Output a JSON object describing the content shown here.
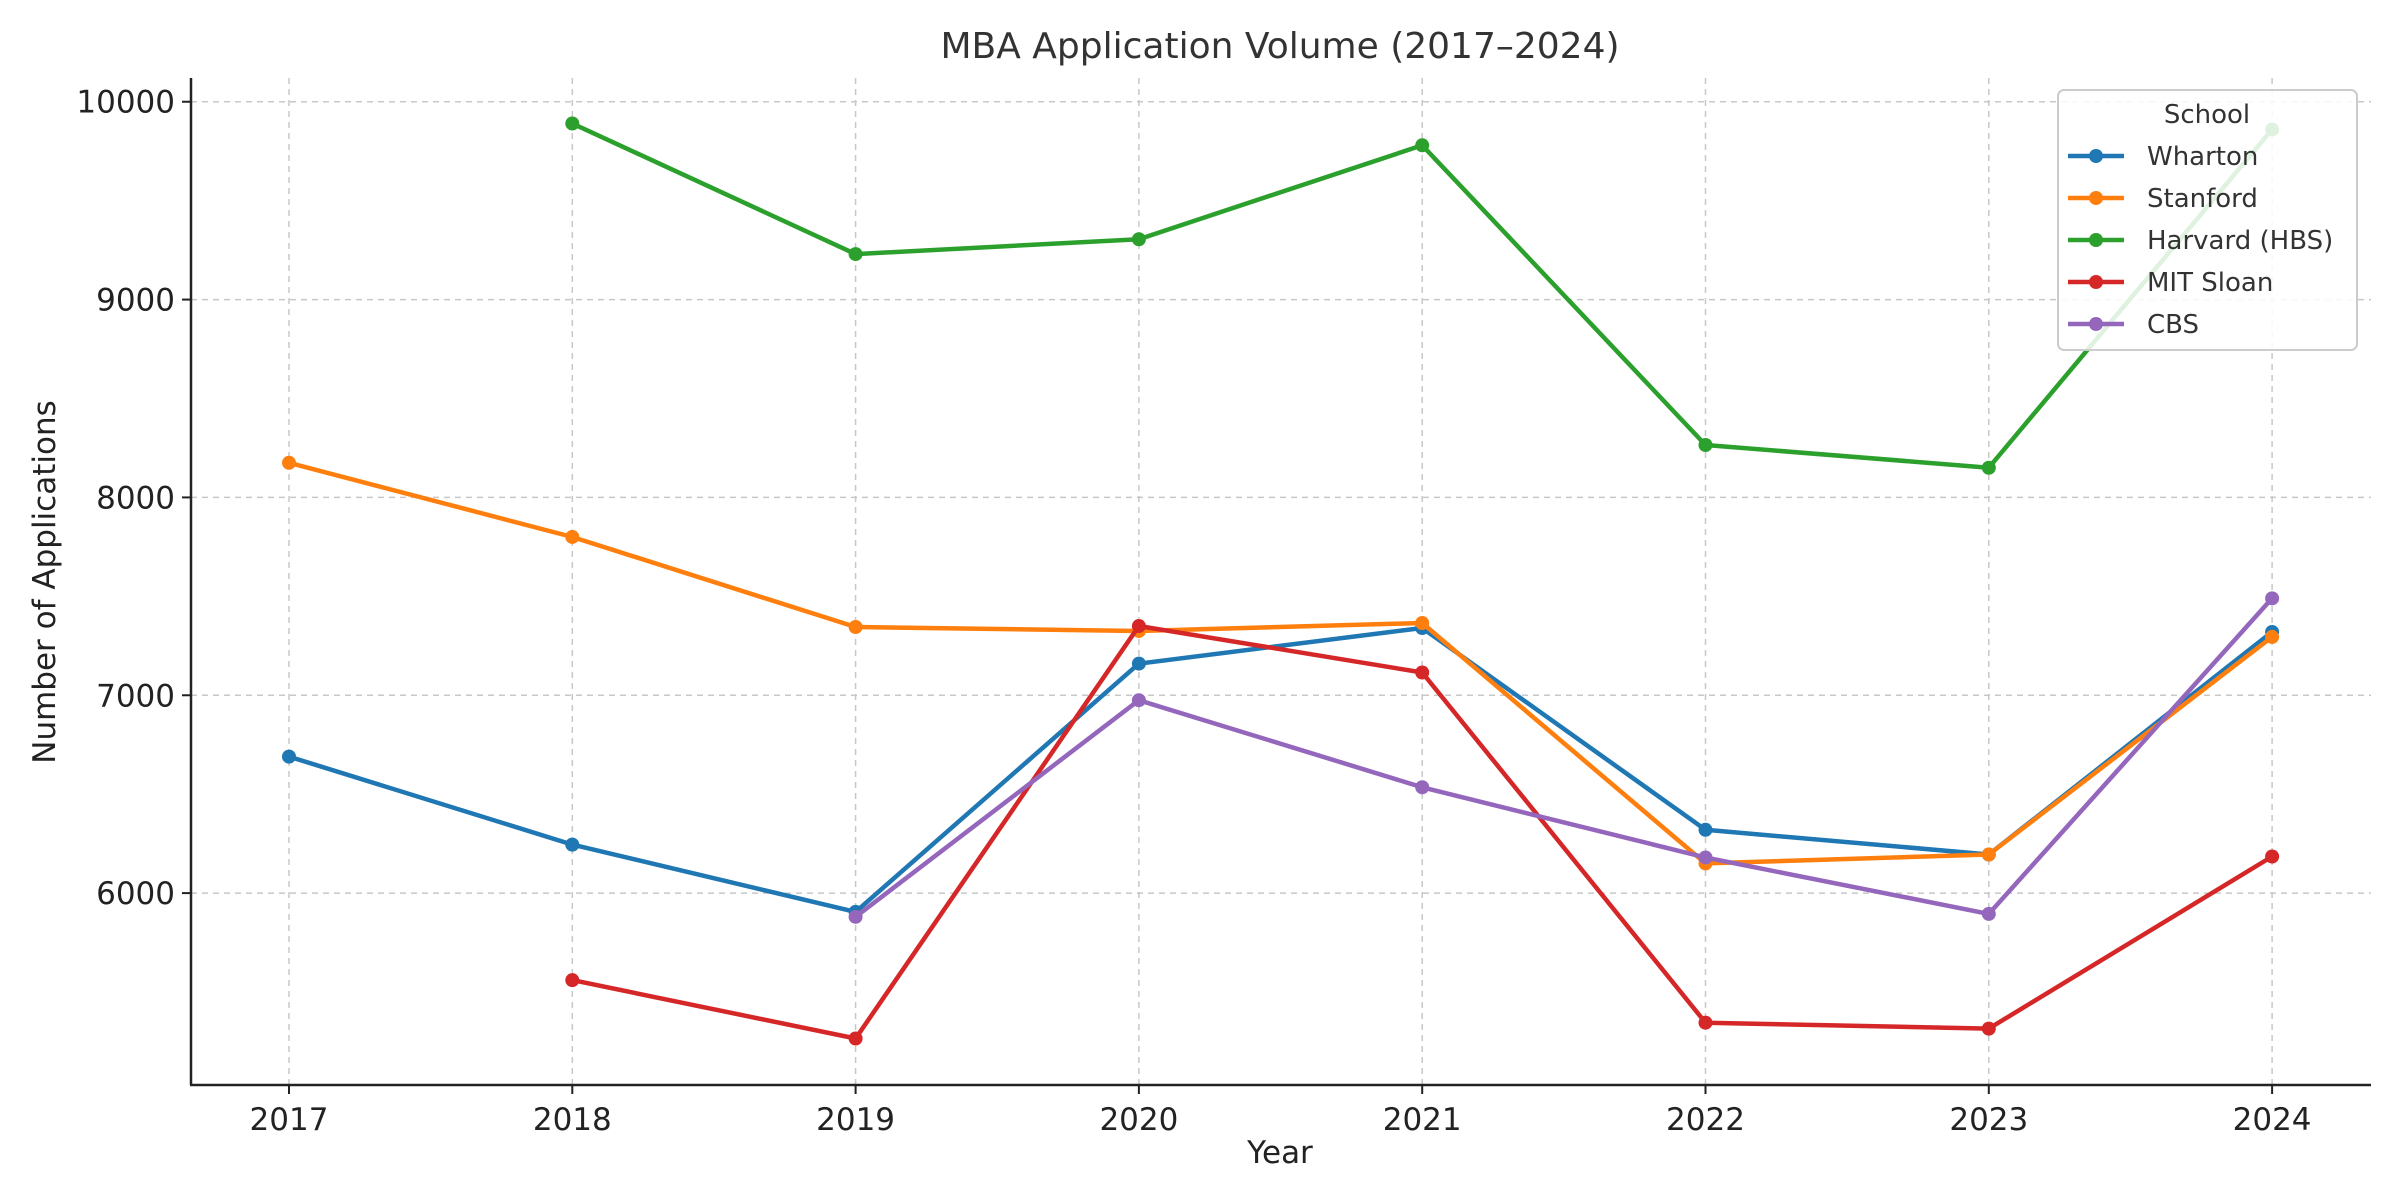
{
  "chart_data": {
    "type": "line",
    "title": "MBA Application Volume (2017–2024)",
    "xlabel": "Year",
    "ylabel": "Number of Applications",
    "categories": [
      "2017",
      "2018",
      "2019",
      "2020",
      "2021",
      "2022",
      "2023",
      "2024"
    ],
    "yticks": [
      6000,
      7000,
      8000,
      9000,
      10000
    ],
    "ytick_labels": [
      "6000",
      "7000",
      "8000",
      "9000",
      "10000"
    ],
    "ylim": [
      5030,
      10120
    ],
    "grid": true,
    "legend": {
      "title": "School",
      "placement": "top-right"
    },
    "series": [
      {
        "name": "Wharton",
        "color": "#1f77b4",
        "values": [
          6690,
          6245,
          5905,
          7160,
          7340,
          6320,
          6195,
          7320
        ]
      },
      {
        "name": "Stanford",
        "color": "#ff7f0e",
        "values": [
          8175,
          7800,
          7345,
          7325,
          7365,
          6150,
          6195,
          7295
        ]
      },
      {
        "name": "Harvard (HBS)",
        "color": "#2ca02c",
        "values": [
          null,
          9890,
          9230,
          9305,
          9780,
          8265,
          8150,
          9860
        ]
      },
      {
        "name": "MIT Sloan",
        "color": "#d62728",
        "values": [
          null,
          5560,
          5265,
          7350,
          7115,
          5345,
          5315,
          6185
        ]
      },
      {
        "name": "CBS",
        "color": "#9467bd",
        "values": [
          null,
          null,
          5880,
          6975,
          6535,
          6180,
          5895,
          7490
        ]
      }
    ]
  }
}
